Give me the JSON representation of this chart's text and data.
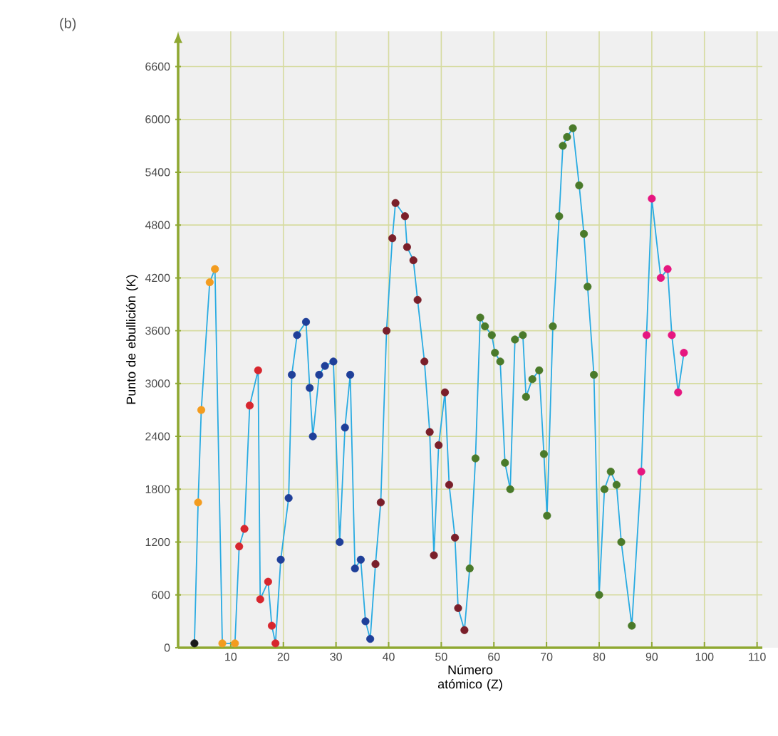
{
  "chart_data": {
    "type": "line",
    "xlabel": "Número atómico (Z)",
    "ylabel": "Punto de ebullición (K)",
    "annotations": [
      "(b)"
    ],
    "xlim": [
      0,
      111
    ],
    "ylim": [
      0,
      7000
    ],
    "xticks": [
      10,
      20,
      30,
      40,
      50,
      60,
      70,
      80,
      90,
      100,
      110
    ],
    "yticks": [
      0,
      600,
      1200,
      1800,
      2400,
      3000,
      3600,
      4200,
      4800,
      5400,
      6000,
      6600
    ],
    "grid": true,
    "marker": "circle",
    "line_style": "solid",
    "series": [
      {
        "color": "#29abe2",
        "x": [
          3.1,
          3.8,
          4.4,
          6.0,
          7.0,
          8.4,
          10.8,
          11.6,
          12.6,
          13.6,
          15.2,
          15.6,
          17.1,
          17.8,
          18.5,
          19.5,
          21.0,
          21.6,
          22.6,
          24.3,
          25.0,
          25.6,
          26.8,
          27.9,
          29.5,
          30.7,
          31.7,
          32.7,
          33.6,
          34.7,
          35.6,
          36.5,
          37.5,
          38.5,
          39.6,
          40.7,
          41.3,
          43.1,
          43.5,
          44.7,
          45.5,
          46.8,
          47.8,
          48.6,
          49.5,
          50.7,
          51.5,
          52.6,
          53.2,
          54.4,
          55.4,
          56.5,
          57.4,
          58.3,
          59.6,
          60.2,
          61.2,
          62.1,
          63.1,
          64.0,
          65.5,
          66.1,
          67.3,
          68.6,
          69.5,
          70.1,
          71.2,
          72.4,
          73.1,
          73.9,
          75.0,
          76.2,
          77.1,
          77.8,
          79.0,
          80.0,
          81.0,
          82.2,
          83.3,
          84.2,
          86.2,
          88.0,
          89.0,
          90.0,
          91.7,
          93.0,
          93.8,
          95.0,
          96.1
        ],
        "values": [
          50,
          1650,
          2700,
          4150,
          4300,
          50,
          50,
          1150,
          1350,
          2750,
          3150,
          550,
          750,
          250,
          50,
          1000,
          1700,
          3100,
          3550,
          3700,
          2950,
          2400,
          3100,
          3200,
          3250,
          1200,
          2500,
          3100,
          900,
          1000,
          300,
          100,
          950,
          1650,
          3600,
          4650,
          5050,
          4900,
          4550,
          4400,
          3950,
          3250,
          2450,
          1050,
          2300,
          2900,
          1850,
          1250,
          450,
          200,
          900,
          2150,
          3750,
          3650,
          3550,
          3350,
          3250,
          2100,
          1800,
          3500,
          3550,
          2850,
          3050,
          3150,
          2200,
          1500,
          3650,
          4900,
          5700,
          5800,
          5900,
          5250,
          4700,
          4100,
          3100,
          600,
          1800,
          2000,
          1850,
          1200,
          250,
          2000,
          3550,
          5100,
          4200,
          4300,
          3550,
          2900,
          3350
        ],
        "colors": [
          "#1a1a1a",
          "#f39c1f",
          "#f39c1f",
          "#f39c1f",
          "#f39c1f",
          "#f39c1f",
          "#f39c1f",
          "#d7262e",
          "#d7262e",
          "#d7262e",
          "#d7262e",
          "#d7262e",
          "#d7262e",
          "#d7262e",
          "#d7262e",
          "#1f3f99",
          "#1f3f99",
          "#1f3f99",
          "#1f3f99",
          "#1f3f99",
          "#1f3f99",
          "#1f3f99",
          "#1f3f99",
          "#1f3f99",
          "#1f3f99",
          "#1f3f99",
          "#1f3f99",
          "#1f3f99",
          "#1f3f99",
          "#1f3f99",
          "#1f3f99",
          "#1f3f99",
          "#7a1f2a",
          "#7a1f2a",
          "#7a1f2a",
          "#7a1f2a",
          "#7a1f2a",
          "#7a1f2a",
          "#7a1f2a",
          "#7a1f2a",
          "#7a1f2a",
          "#7a1f2a",
          "#7a1f2a",
          "#7a1f2a",
          "#7a1f2a",
          "#7a1f2a",
          "#7a1f2a",
          "#7a1f2a",
          "#7a1f2a",
          "#7a1f2a",
          "#4a7a2a",
          "#4a7a2a",
          "#4a7a2a",
          "#4a7a2a",
          "#4a7a2a",
          "#4a7a2a",
          "#4a7a2a",
          "#4a7a2a",
          "#4a7a2a",
          "#4a7a2a",
          "#4a7a2a",
          "#4a7a2a",
          "#4a7a2a",
          "#4a7a2a",
          "#4a7a2a",
          "#4a7a2a",
          "#4a7a2a",
          "#4a7a2a",
          "#4a7a2a",
          "#4a7a2a",
          "#4a7a2a",
          "#4a7a2a",
          "#4a7a2a",
          "#4a7a2a",
          "#4a7a2a",
          "#4a7a2a",
          "#4a7a2a",
          "#4a7a2a",
          "#4a7a2a",
          "#4a7a2a",
          "#4a7a2a",
          "#e6167f",
          "#e6167f",
          "#e6167f",
          "#e6167f",
          "#e6167f",
          "#e6167f",
          "#e6167f",
          "#e6167f"
        ]
      }
    ]
  }
}
